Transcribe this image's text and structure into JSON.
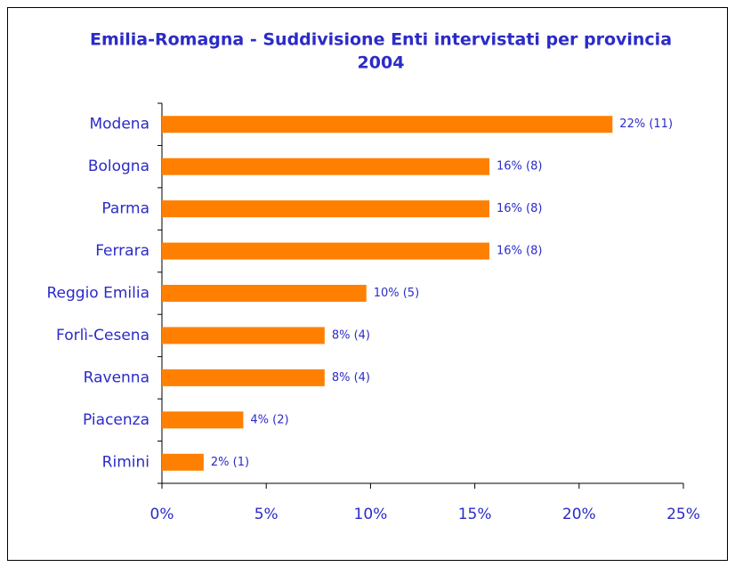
{
  "chart_data": {
    "type": "barh",
    "title": "Emilia-Romagna - Suddivisione Enti intervistati per provincia",
    "subtitle": "2004",
    "categories": [
      "Modena",
      "Bologna",
      "Parma",
      "Ferrara",
      "Reggio Emilia",
      "Forlì-Cesena",
      "Ravenna",
      "Piacenza",
      "Rimini"
    ],
    "values": [
      21.6,
      15.7,
      15.7,
      15.7,
      9.8,
      7.8,
      7.8,
      3.9,
      2.0
    ],
    "value_labels": [
      "22% (11)",
      "16% (8)",
      "16% (8)",
      "16% (8)",
      "10% (5)",
      "8% (4)",
      "8% (4)",
      "4% (2)",
      "2% (1)"
    ],
    "color": "#ff8000",
    "xlim": [
      0,
      25
    ],
    "xticks": [
      {
        "value": 0,
        "label": "0%"
      },
      {
        "value": 5,
        "label": "5%"
      },
      {
        "value": 10,
        "label": "10%"
      },
      {
        "value": 15,
        "label": "15%"
      },
      {
        "value": 20,
        "label": "20%"
      },
      {
        "value": 25,
        "label": "25%"
      }
    ],
    "grid": false
  }
}
